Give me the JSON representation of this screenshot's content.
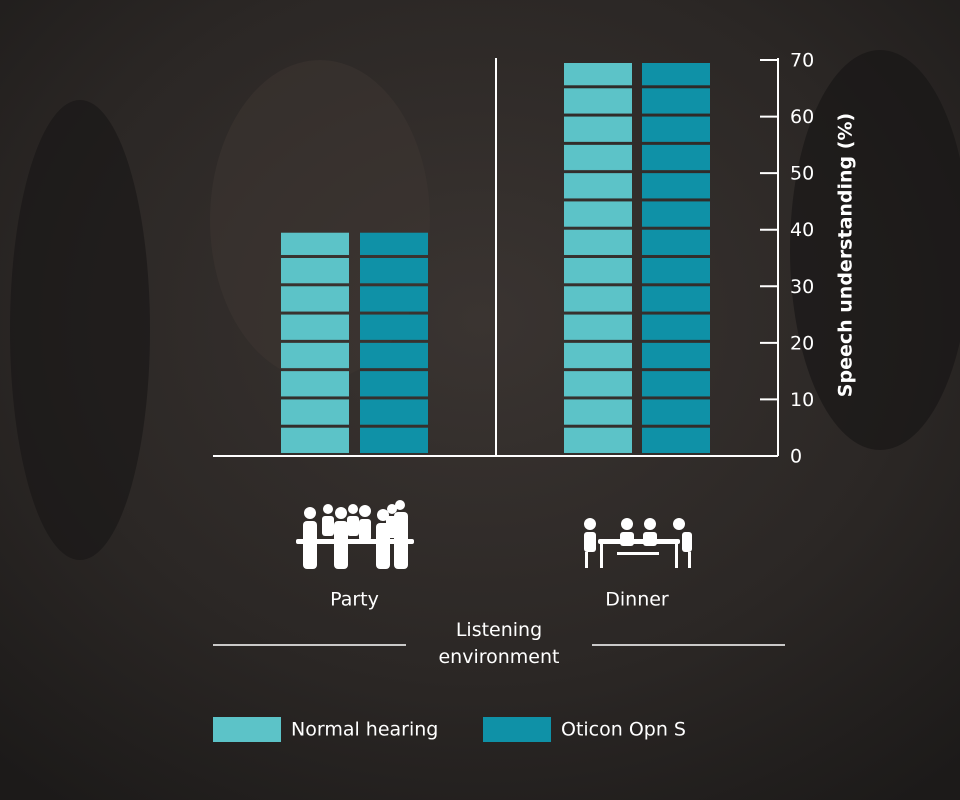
{
  "chart_data": {
    "type": "bar",
    "categories": [
      "Party",
      "Dinner"
    ],
    "series": [
      {
        "name": "Normal hearing",
        "color": "#5cc3c8",
        "values": [
          40,
          70
        ]
      },
      {
        "name": "Oticon Opn S",
        "color": "#0f91a7",
        "values": [
          40,
          70
        ]
      }
    ],
    "ylabel": "Speech understanding (%)",
    "xlabel": "Listening environment",
    "ylim": [
      0,
      70
    ],
    "yticks": [
      0,
      10,
      20,
      30,
      40,
      50,
      60,
      70
    ],
    "legend": "bottom"
  }
}
